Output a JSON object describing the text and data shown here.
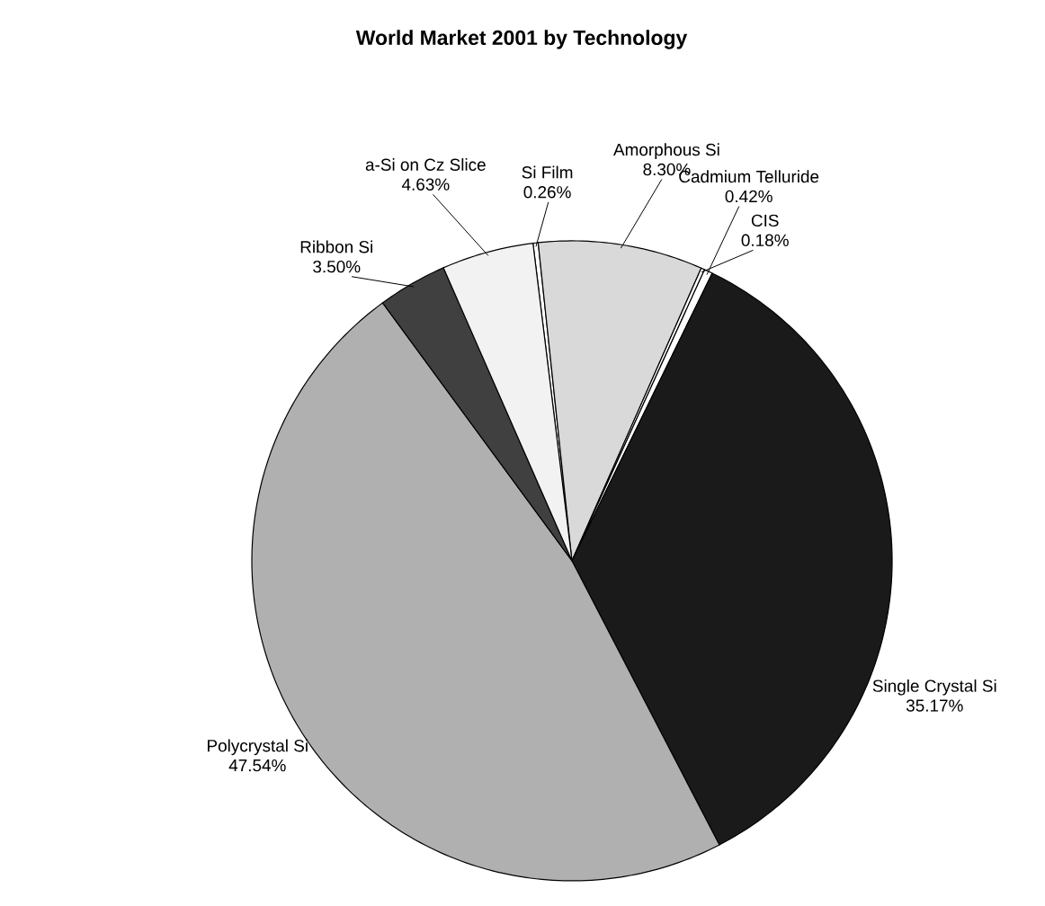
{
  "chart_data": {
    "type": "pie",
    "title": "World Market 2001 by Technology",
    "categories": [
      "Si Film",
      "Amorphous Si",
      "CIS",
      "Cadmium Telluride",
      "Single Crystal Si",
      "Polycrystal Si",
      "Ribbon Si",
      "a-Si on Cz Slice"
    ],
    "values": [
      0.26,
      8.3,
      0.18,
      0.42,
      35.17,
      47.54,
      3.5,
      4.63
    ],
    "value_labels": [
      "0.26%",
      "8.30%",
      "0.18%",
      "0.42%",
      "35.17%",
      "47.54%",
      "3.50%",
      "4.63%"
    ],
    "colors": [
      "#ffffff",
      "#d9d9d9",
      "#ffffff",
      "#ffffff",
      "#1a1a1a",
      "#b0b0b0",
      "#404040",
      "#f2f2f2"
    ]
  }
}
